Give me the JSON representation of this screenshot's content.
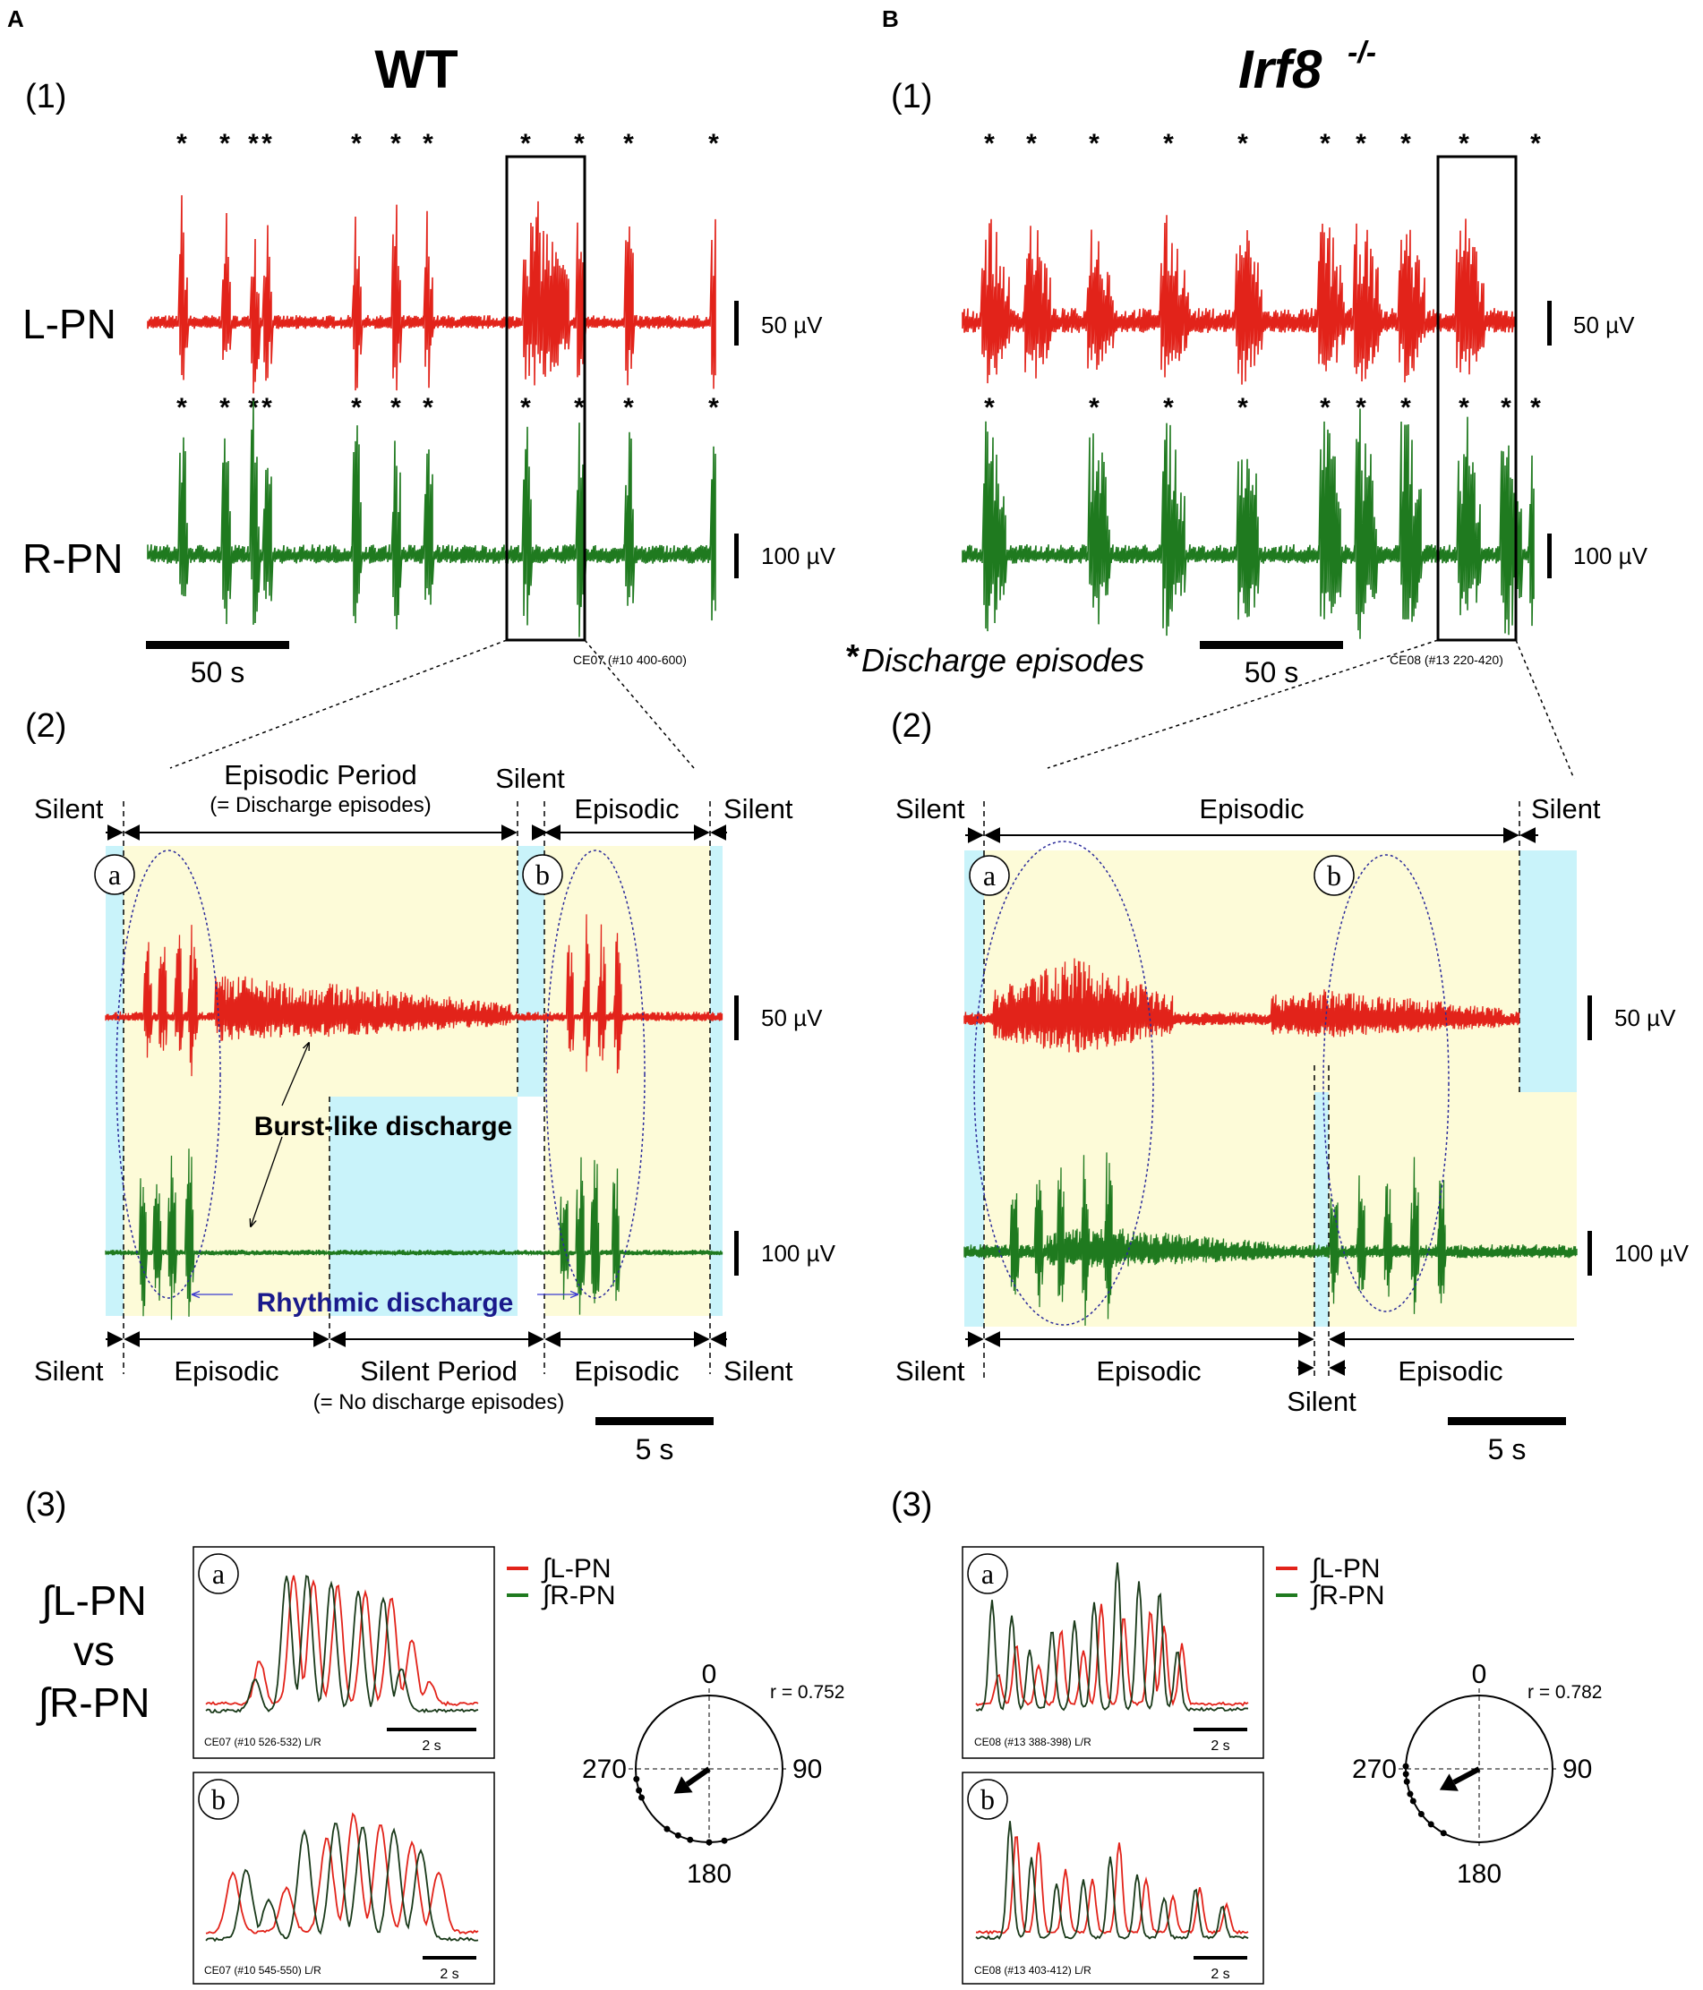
{
  "panels": {
    "A": {
      "letter": "A",
      "title": "WT",
      "p1": {
        "label": "(1)",
        "ch1": "L-PN",
        "ch2": "R-PN",
        "scale1": "50 µV",
        "scale2": "100 µV",
        "timebar": "50 s",
        "caption": "CE07 (#10 400-600)"
      },
      "p2": {
        "label": "(2)",
        "top": {
          "silent_left": "Silent",
          "episodic_period": "Episodic Period",
          "episodic_note": "(= Discharge episodes)",
          "silent_mid": "Silent",
          "episodic": "Episodic",
          "silent_right": "Silent"
        },
        "marker_a": "a",
        "marker_b": "b",
        "scale1": "50 µV",
        "scale2": "100 µV",
        "burst": "Burst-like discharge",
        "rhythmic": "Rhythmic discharge",
        "bottom": {
          "silent_left": "Silent",
          "episodic_left": "Episodic",
          "silent_period": "Silent Period",
          "silent_note": "(= No discharge episodes)",
          "episodic_right": "Episodic",
          "silent_right": "Silent"
        },
        "timebar": "5 s"
      },
      "p3": {
        "label": "(3)",
        "compare_l": "∫L-PN",
        "vs": "vs",
        "compare_r": "∫R-PN",
        "legend_l": "∫L-PN",
        "legend_r": "∫R-PN",
        "inset_a": {
          "marker": "a",
          "caption": "CE07 (#10 526-532) L/R",
          "timebar": "2 s"
        },
        "inset_b": {
          "marker": "b",
          "caption": "CE07 (#10 545-550) L/R",
          "timebar": "2 s"
        },
        "polar": {
          "deg_top": "0",
          "deg_right": "90",
          "deg_bottom": "180",
          "deg_left": "270",
          "r_label": "r = 0.752",
          "r": 0.752,
          "angle_deg": 235
        }
      }
    },
    "B": {
      "letter": "B",
      "title": "Irf8",
      "title_sup": "-/-",
      "p1": {
        "label": "(1)",
        "scale1": "50 µV",
        "scale2": "100 µV",
        "timebar": "50 s",
        "caption": "CE08 (#13 220-420)",
        "footnote_star": "*",
        "footnote": "Discharge episodes"
      },
      "p2": {
        "label": "(2)",
        "top": {
          "silent_left": "Silent",
          "episodic": "Episodic",
          "silent_right": "Silent"
        },
        "marker_a": "a",
        "marker_b": "b",
        "scale1": "50 µV",
        "scale2": "100 µV",
        "bottom": {
          "silent_left": "Silent",
          "episodic_left": "Episodic",
          "silent_mid": "Silent",
          "episodic_right": "Episodic"
        },
        "timebar": "5 s"
      },
      "p3": {
        "label": "(3)",
        "legend_l": "∫L-PN",
        "legend_r": "∫R-PN",
        "inset_a": {
          "marker": "a",
          "caption": "CE08 (#13 388-398) L/R",
          "timebar": "2 s"
        },
        "inset_b": {
          "marker": "b",
          "caption": "CE08 (#13 403-412) L/R",
          "timebar": "2 s"
        },
        "polar": {
          "deg_top": "0",
          "deg_right": "90",
          "deg_bottom": "180",
          "deg_left": "270",
          "r_label": "r = 0.782",
          "r": 0.782,
          "angle_deg": 242
        }
      }
    }
  },
  "colors": {
    "left_trace": "#e2231a",
    "right_trace": "#1f7a1f",
    "episodic_bg": "#fdfbd8",
    "silent_bg": "#c9f3fa",
    "ellipse": "#2a2a9a",
    "rhythmic_text": "#1a1a8c"
  }
}
